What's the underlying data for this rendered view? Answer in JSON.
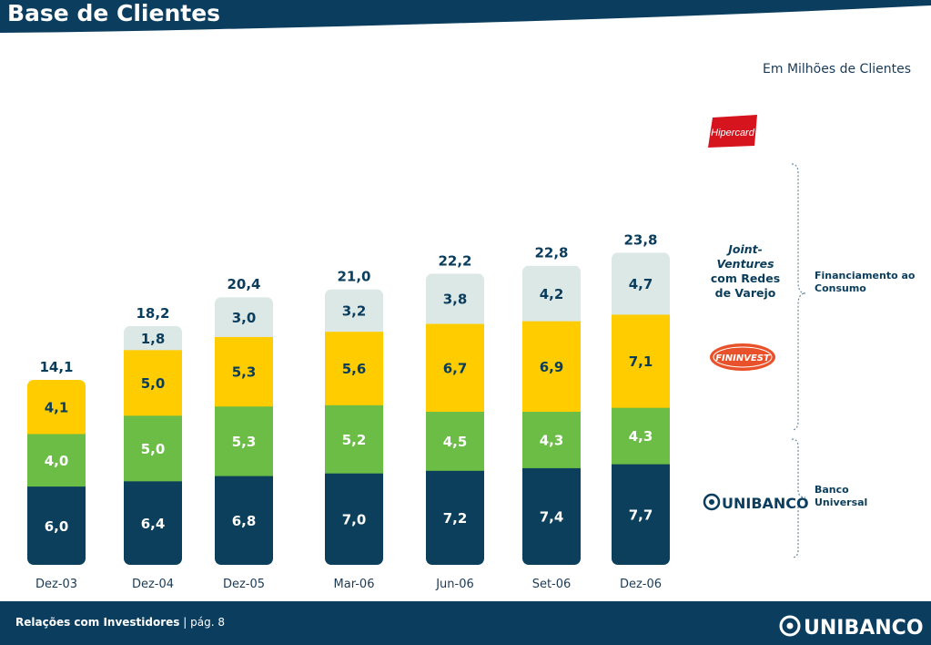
{
  "header": {
    "title": "Base de Clientes"
  },
  "unit_note": "Em Milhões de Clientes",
  "side": {
    "hipercard_logo": "Hipercard",
    "joint_ventures_title": "Joint-Ventures",
    "joint_ventures_sub": "com Redes de Varejo",
    "fininvest_logo": "FININVEST",
    "unibanco_logo": "UNIBANCO",
    "financiamento_label": "Financiamento ao Consumo",
    "banco_label": "Banco Universal"
  },
  "footer": {
    "title": "Relações com Investidores",
    "page": "pág. 8",
    "logo": "UNIBANCO"
  },
  "colors": {
    "banco": "#0b3f5c",
    "fininvest": "#6bbd45",
    "jv": "#ffcc00",
    "hipercard": "#dce8e6",
    "title_bg": "#0b3d5f"
  },
  "chart_data": {
    "type": "bar",
    "stacked": true,
    "categories": [
      "Dez-03",
      "Dez-04",
      "Dez-05",
      "Mar-06",
      "Jun-06",
      "Set-06",
      "Dez-06"
    ],
    "series": [
      {
        "values": [
          6.0,
          6.4,
          6.8,
          7.0,
          7.2,
          7.4,
          7.7
        ]
      },
      {
        "values": [
          4.0,
          5.0,
          5.3,
          5.2,
          4.5,
          4.3,
          4.3
        ]
      },
      {
        "values": [
          4.1,
          5.0,
          5.3,
          5.6,
          6.7,
          6.9,
          7.1
        ]
      },
      {
        "values": [
          null,
          1.8,
          3.0,
          3.2,
          3.8,
          4.2,
          4.7
        ]
      }
    ],
    "series_labels": [
      [
        "6,0",
        "6,4",
        "6,8",
        "7,0",
        "7,2",
        "7,4",
        "7,7"
      ],
      [
        "4,0",
        "5,0",
        "5,3",
        "5,2",
        "4,5",
        "4,3",
        "4,3"
      ],
      [
        "4,1",
        "5,0",
        "5,3",
        "5,6",
        "6,7",
        "6,9",
        "7,1"
      ],
      [
        "",
        "1,8",
        "3,0",
        "3,2",
        "3,8",
        "4,2",
        "4,7"
      ]
    ],
    "totals": [
      14.1,
      18.2,
      20.4,
      21.0,
      22.2,
      22.8,
      23.8
    ],
    "total_labels": [
      "14,1",
      "18,2",
      "20,4",
      "21,0",
      "22,2",
      "22,8",
      "23,8"
    ]
  }
}
